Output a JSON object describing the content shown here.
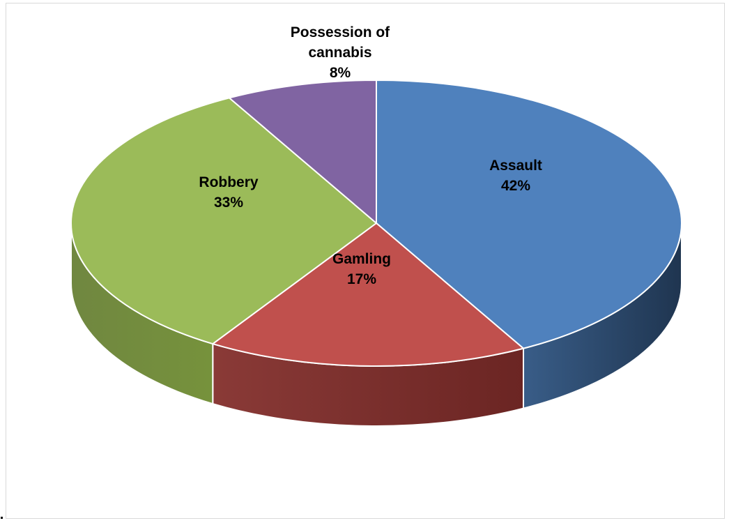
{
  "chart_data": {
    "type": "pie",
    "style": "3d",
    "title": "",
    "slices": [
      {
        "label": "Assault",
        "value": 42,
        "value_label": "42%",
        "color": "#4F81BD",
        "side_color": "#1F3550"
      },
      {
        "label": "Gamling",
        "value": 17,
        "value_label": "17%",
        "color": "#C0504D",
        "side_color": "#6B2523"
      },
      {
        "label": "Robbery",
        "value": 33,
        "value_label": "33%",
        "color": "#9BBB59",
        "side_color": "#76923C"
      },
      {
        "label": "Possession of cannabis",
        "label_lines": [
          "Possession of",
          "cannabis"
        ],
        "value": 8,
        "value_label": "8%",
        "color": "#8064A2",
        "side_color": "#4E3B66"
      }
    ],
    "legend": "none",
    "data_labels": "inside"
  }
}
